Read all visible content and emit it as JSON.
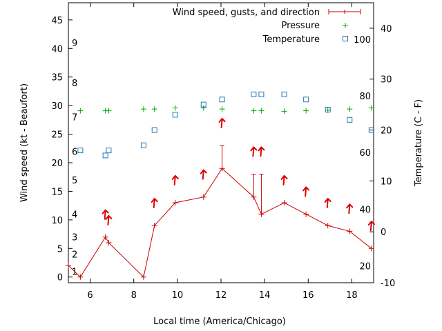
{
  "chart_data": {
    "type": "line",
    "xlabel": "Local time (America/Chicago)",
    "ylabel_left": "Wind speed (kt - Beaufort)",
    "ylabel_right": "Temperature (C - F)",
    "xlim": [
      5.0,
      19.0
    ],
    "ylim_left": [
      -1,
      48
    ],
    "ylim_right": [
      -10,
      45
    ],
    "x_ticks": [
      6,
      8,
      10,
      12,
      14,
      16,
      18
    ],
    "y_ticks_left": [
      0,
      5,
      10,
      15,
      20,
      25,
      30,
      35,
      40,
      45
    ],
    "y_ticks_right": [
      -10,
      0,
      10,
      20,
      30,
      40
    ],
    "beaufort_labels": [
      {
        "label": "1",
        "kt": 1
      },
      {
        "label": "2",
        "kt": 4
      },
      {
        "label": "3",
        "kt": 7
      },
      {
        "label": "4",
        "kt": 11
      },
      {
        "label": "5",
        "kt": 17
      },
      {
        "label": "6",
        "kt": 22
      },
      {
        "label": "7",
        "kt": 28
      },
      {
        "label": "8",
        "kt": 34
      },
      {
        "label": "9",
        "kt": 41
      }
    ],
    "fahrenheit_labels": [
      {
        "label": "20",
        "c": -6.7
      },
      {
        "label": "40",
        "c": 4.4
      },
      {
        "label": "60",
        "c": 15.6
      },
      {
        "label": "80",
        "c": 26.7
      },
      {
        "label": "100",
        "c": 37.8
      }
    ],
    "legend": [
      {
        "label": "Wind speed, gusts, and direction",
        "color": "#cc0000"
      },
      {
        "label": "Pressure",
        "color": "#00aa00"
      },
      {
        "label": "Temperature",
        "color": "#1f77b4"
      }
    ],
    "series": [
      {
        "name": "Wind speed, gusts, and direction",
        "color": "#cc0000",
        "x": [
          5.0,
          5.55,
          6.7,
          6.85,
          8.45,
          8.95,
          9.9,
          11.2,
          12.05,
          13.5,
          13.85,
          14.9,
          15.9,
          16.9,
          17.9,
          18.9
        ],
        "values": [
          2,
          0,
          7,
          6,
          0,
          9,
          13,
          14,
          19,
          14,
          11,
          13,
          11,
          9,
          8,
          5
        ],
        "gusts": [
          null,
          null,
          null,
          null,
          null,
          null,
          null,
          null,
          23,
          18,
          18,
          null,
          null,
          null,
          null,
          null
        ]
      },
      {
        "name": "Pressure",
        "color": "#00aa00",
        "x": [
          5.55,
          6.7,
          6.85,
          8.45,
          8.95,
          9.9,
          11.2,
          12.05,
          13.5,
          13.85,
          14.9,
          15.9,
          16.9,
          17.9,
          18.9
        ],
        "values": [
          29.1,
          29.1,
          29.1,
          29.4,
          29.4,
          29.6,
          29.6,
          29.4,
          29.1,
          29.1,
          29.0,
          29.1,
          29.2,
          29.4,
          29.6
        ]
      },
      {
        "name": "Temperature",
        "color": "#1f77b4",
        "x": [
          5.55,
          6.7,
          6.85,
          8.45,
          8.95,
          9.9,
          11.2,
          12.05,
          13.5,
          13.85,
          14.9,
          15.9,
          16.9,
          17.9,
          18.9
        ],
        "values": [
          16,
          15,
          16,
          17,
          20,
          23,
          25,
          26,
          27,
          27,
          27,
          26,
          24,
          22,
          20
        ]
      }
    ],
    "wind_arrows": [
      {
        "x": 6.7,
        "kt": 11
      },
      {
        "x": 6.85,
        "kt": 10
      },
      {
        "x": 8.95,
        "kt": 13
      },
      {
        "x": 9.9,
        "kt": 17
      },
      {
        "x": 11.2,
        "kt": 18
      },
      {
        "x": 12.05,
        "kt": 27
      },
      {
        "x": 13.5,
        "kt": 22
      },
      {
        "x": 13.85,
        "kt": 22
      },
      {
        "x": 14.9,
        "kt": 17
      },
      {
        "x": 15.9,
        "kt": 15
      },
      {
        "x": 16.9,
        "kt": 13
      },
      {
        "x": 17.9,
        "kt": 12
      },
      {
        "x": 18.9,
        "kt": 9
      }
    ]
  }
}
